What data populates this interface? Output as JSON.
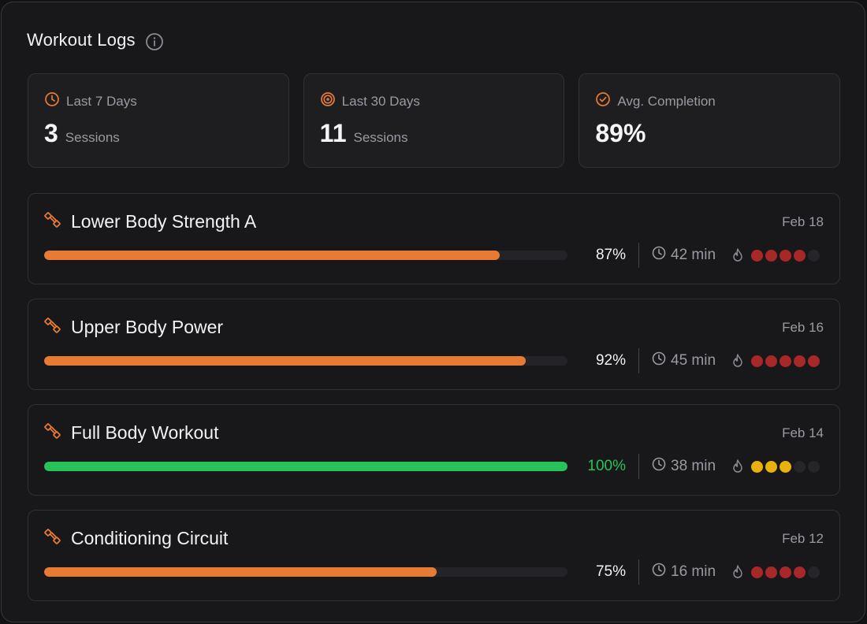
{
  "header": {
    "title": "Workout Logs",
    "info_icon": "info-icon"
  },
  "stats": [
    {
      "icon": "clock-icon",
      "label": "Last 7 Days",
      "value": "3",
      "unit": "Sessions"
    },
    {
      "icon": "target-icon",
      "label": "Last 30 Days",
      "value": "11",
      "unit": "Sessions"
    },
    {
      "icon": "check-circle-icon",
      "label": "Avg. Completion",
      "value": "89%",
      "unit": ""
    }
  ],
  "workouts": [
    {
      "title": "Lower Body Strength A",
      "date": "Feb 18",
      "completion": 0.87,
      "completion_label": "87%",
      "duration": "42 min",
      "intensity": 4,
      "intensity_max": 5,
      "intensity_color": "#a82828"
    },
    {
      "title": "Upper Body Power",
      "date": "Feb 16",
      "completion": 0.92,
      "completion_label": "92%",
      "duration": "45 min",
      "intensity": 5,
      "intensity_max": 5,
      "intensity_color": "#a82828"
    },
    {
      "title": "Full Body Workout",
      "date": "Feb 14",
      "completion": 1.0,
      "completion_label": "100%",
      "duration": "38 min",
      "intensity": 3,
      "intensity_max": 5,
      "intensity_color": "#e8b10e"
    },
    {
      "title": "Conditioning Circuit",
      "date": "Feb 12",
      "completion": 0.75,
      "completion_label": "75%",
      "duration": "16 min",
      "intensity": 4,
      "intensity_max": 5,
      "intensity_color": "#a82828"
    }
  ],
  "colors": {
    "accent": "#e77b36",
    "complete": "#27c25c",
    "text_muted": "#9a9aa2",
    "dot_empty": "#26262a"
  }
}
